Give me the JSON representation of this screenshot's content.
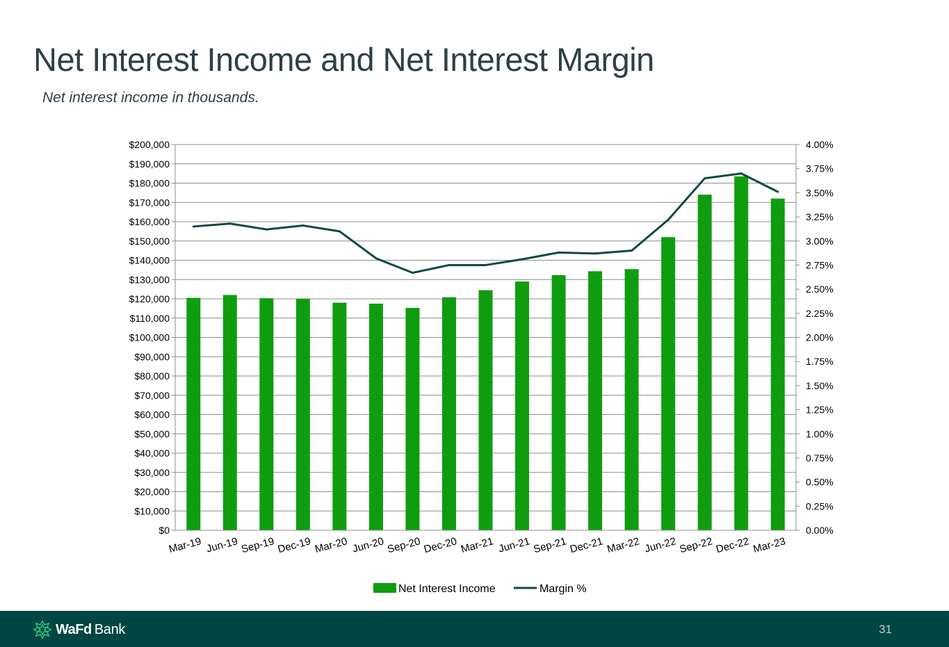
{
  "slide": {
    "title": "Net Interest Income and Net Interest Margin",
    "subtitle": "Net interest income in thousands.",
    "page_number": "31"
  },
  "footer": {
    "logo_wafd": "WaFd",
    "logo_bank": "Bank",
    "background_color": "#004643"
  },
  "chart_data": {
    "type": "bar",
    "title": "",
    "categories": [
      "Mar-19",
      "Jun-19",
      "Sep-19",
      "Dec-19",
      "Mar-20",
      "Jun-20",
      "Sep-20",
      "Dec-20",
      "Mar-21",
      "Jun-21",
      "Sep-21",
      "Dec-21",
      "Mar-22",
      "Jun-22",
      "Sep-22",
      "Dec-22",
      "Mar-23"
    ],
    "series": [
      {
        "name": "Net Interest Income",
        "type": "bar",
        "axis": "left",
        "color": "#0f9d0f",
        "values": [
          120500,
          122000,
          120300,
          120000,
          118000,
          117500,
          115300,
          120800,
          124500,
          129000,
          132300,
          134300,
          135400,
          152000,
          174000,
          183500,
          172000
        ]
      },
      {
        "name": "Margin %",
        "type": "line",
        "axis": "right",
        "color": "#0b4a44",
        "values": [
          3.15,
          3.18,
          3.12,
          3.16,
          3.1,
          2.82,
          2.67,
          2.75,
          2.75,
          2.81,
          2.88,
          2.87,
          2.9,
          3.22,
          3.65,
          3.7,
          3.51
        ]
      }
    ],
    "y_left": {
      "min": 0,
      "max": 200000,
      "step": 10000,
      "ticks": [
        "$0",
        "$10,000",
        "$20,000",
        "$30,000",
        "$40,000",
        "$50,000",
        "$60,000",
        "$70,000",
        "$80,000",
        "$90,000",
        "$100,000",
        "$110,000",
        "$120,000",
        "$130,000",
        "$140,000",
        "$150,000",
        "$160,000",
        "$170,000",
        "$180,000",
        "$190,000",
        "$200,000"
      ]
    },
    "y_right": {
      "min": 0,
      "max": 4.0,
      "step": 0.25,
      "ticks": [
        "0.00%",
        "0.25%",
        "0.50%",
        "0.75%",
        "1.00%",
        "1.25%",
        "1.50%",
        "1.75%",
        "2.00%",
        "2.25%",
        "2.50%",
        "2.75%",
        "3.00%",
        "3.25%",
        "3.50%",
        "3.75%",
        "4.00%"
      ]
    },
    "xlabel": "",
    "ylabel": "",
    "grid": true,
    "legend_position": "bottom"
  }
}
